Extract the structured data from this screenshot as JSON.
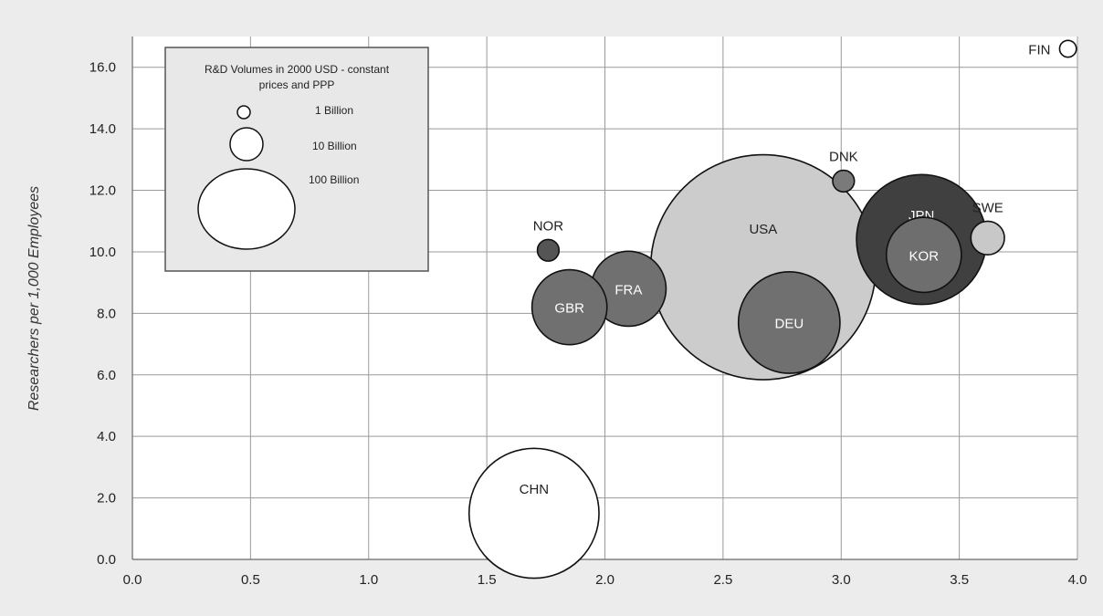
{
  "chart_data": {
    "type": "bubble",
    "title": "",
    "xlabel": "",
    "ylabel": "Researchers per 1,000 Employees",
    "xlim": [
      0.0,
      4.0
    ],
    "ylim": [
      0.0,
      17.0
    ],
    "x_ticks": [
      "0.0",
      "0.5",
      "1.0",
      "1.5",
      "2.0",
      "2.5",
      "3.0",
      "3.5",
      "4.0"
    ],
    "y_ticks": [
      "0.0",
      "2.0",
      "4.0",
      "6.0",
      "8.0",
      "10.0",
      "12.0",
      "14.0",
      "16.0"
    ],
    "grid": true,
    "size_legend": {
      "title_line1": "R&D Volumes in 2000 USD - constant",
      "title_line2": "prices and PPP",
      "items": [
        {
          "label": "1 Billion",
          "value": 1
        },
        {
          "label": "10 Billion",
          "value": 10
        },
        {
          "label": "100 Billion",
          "value": 100
        }
      ],
      "placement": "top-left"
    },
    "points": [
      {
        "label": "FIN",
        "x": 3.96,
        "y": 16.6,
        "rd_volume": 1.5,
        "color": "#ffffff",
        "label_pos": "left"
      },
      {
        "label": "DNK",
        "x": 3.01,
        "y": 12.3,
        "rd_volume": 2.5,
        "color": "#7a7a7a",
        "label_pos": "above"
      },
      {
        "label": "SWE",
        "x": 3.62,
        "y": 10.45,
        "rd_volume": 6,
        "color": "#c8c8c8",
        "label_pos": "above"
      },
      {
        "label": "NOR",
        "x": 1.76,
        "y": 10.05,
        "rd_volume": 2.5,
        "color": "#555555",
        "label_pos": "above"
      },
      {
        "label": "USA",
        "x": 2.67,
        "y": 9.5,
        "rd_volume": 270,
        "color": "#cccccc",
        "label_pos": "inside-top"
      },
      {
        "label": "JPN",
        "x": 3.34,
        "y": 10.4,
        "rd_volume": 90,
        "color": "#404040",
        "label_pos": "inside-top"
      },
      {
        "label": "KOR",
        "x": 3.35,
        "y": 9.9,
        "rd_volume": 30,
        "color": "#6e6e6e",
        "label_pos": "inside"
      },
      {
        "label": "FRA",
        "x": 2.1,
        "y": 8.8,
        "rd_volume": 30,
        "color": "#707070",
        "label_pos": "inside"
      },
      {
        "label": "GBR",
        "x": 1.85,
        "y": 8.2,
        "rd_volume": 30,
        "color": "#707070",
        "label_pos": "inside"
      },
      {
        "label": "DEU",
        "x": 2.78,
        "y": 7.7,
        "rd_volume": 55,
        "color": "#707070",
        "label_pos": "inside"
      },
      {
        "label": "CHN",
        "x": 1.7,
        "y": 1.5,
        "rd_volume": 90,
        "color": "#ffffff",
        "label_pos": "inside-top"
      }
    ]
  }
}
